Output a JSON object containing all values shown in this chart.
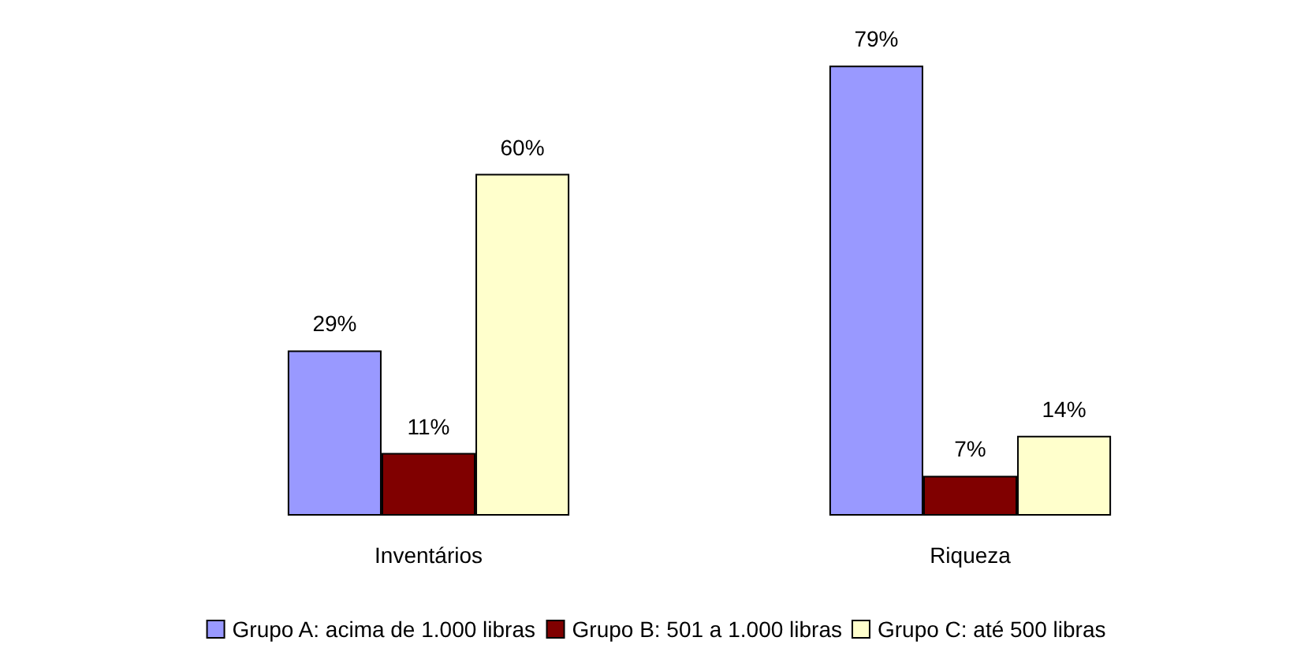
{
  "chart_data": {
    "type": "bar",
    "categories": [
      "Inventários",
      "Riqueza"
    ],
    "series": [
      {
        "name": "Grupo A: acima de 1.000 libras",
        "color": "#9999ff",
        "values": [
          29,
          79
        ],
        "value_labels": [
          "29%",
          "79%"
        ]
      },
      {
        "name": "Grupo B: 501 a 1.000 libras",
        "color": "#800000",
        "values": [
          11,
          7
        ],
        "value_labels": [
          "11%",
          "7%"
        ]
      },
      {
        "name": "Grupo C: até 500 libras",
        "color": "#ffffcc",
        "values": [
          60,
          14
        ],
        "value_labels": [
          "60%",
          "14%"
        ]
      }
    ],
    "legend": "bottom",
    "grid": false,
    "tick_labels": "x"
  }
}
